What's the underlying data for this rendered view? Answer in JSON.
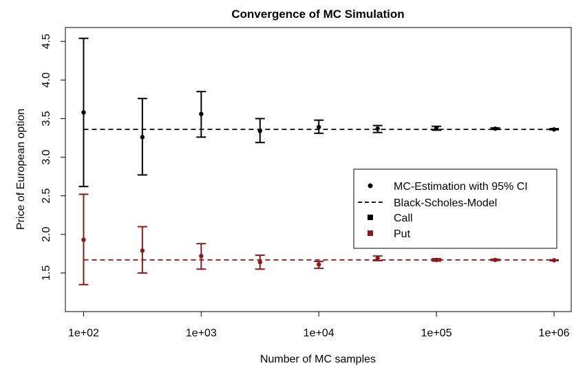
{
  "chart_data": {
    "type": "scatter",
    "title": "Convergence of MC Simulation",
    "xlabel": "Number of MC samples",
    "ylabel": "Price of European option",
    "x_scale": "log",
    "xlim": [
      70,
      1400000
    ],
    "ylim": [
      1.0,
      4.68
    ],
    "x_ticks": [
      {
        "value": 100,
        "label": "1e+02"
      },
      {
        "value": 1000,
        "label": "1e+03"
      },
      {
        "value": 10000,
        "label": "1e+04"
      },
      {
        "value": 100000,
        "label": "1e+05"
      },
      {
        "value": 1000000,
        "label": "1e+06"
      }
    ],
    "y_ticks": [
      {
        "value": 1.5,
        "label": "1.5"
      },
      {
        "value": 2.0,
        "label": "2.0"
      },
      {
        "value": 2.5,
        "label": "2.5"
      },
      {
        "value": 3.0,
        "label": "3.0"
      },
      {
        "value": 3.5,
        "label": "3.5"
      },
      {
        "value": 4.0,
        "label": "4.0"
      },
      {
        "value": 4.5,
        "label": "4.5"
      }
    ],
    "grid": false,
    "legend_position": "right",
    "legend": [
      {
        "label": "MC-Estimation with 95% CI",
        "symbol": "point",
        "color": "#000000"
      },
      {
        "label": "Black-Scholes-Model",
        "symbol": "dashed-line",
        "color": "#000000"
      },
      {
        "label": "Call",
        "symbol": "square",
        "color": "#000000"
      },
      {
        "label": "Put",
        "symbol": "square",
        "color": "#8b1a1a"
      }
    ],
    "series": [
      {
        "name": "Call",
        "color": "#000000",
        "reference": 3.36,
        "points": [
          {
            "x": 100,
            "y": 3.58,
            "lo": 2.62,
            "hi": 4.54
          },
          {
            "x": 316,
            "y": 3.26,
            "lo": 2.77,
            "hi": 3.76
          },
          {
            "x": 1000,
            "y": 3.56,
            "lo": 3.26,
            "hi": 3.85
          },
          {
            "x": 3162,
            "y": 3.34,
            "lo": 3.19,
            "hi": 3.5
          },
          {
            "x": 10000,
            "y": 3.39,
            "lo": 3.31,
            "hi": 3.48
          },
          {
            "x": 31623,
            "y": 3.37,
            "lo": 3.32,
            "hi": 3.41
          },
          {
            "x": 100000,
            "y": 3.38,
            "lo": 3.35,
            "hi": 3.4
          },
          {
            "x": 316228,
            "y": 3.37,
            "lo": 3.36,
            "hi": 3.38
          },
          {
            "x": 1000000,
            "y": 3.36,
            "lo": 3.355,
            "hi": 3.37
          }
        ]
      },
      {
        "name": "Put",
        "color": "#8b1a1a",
        "reference": 1.67,
        "points": [
          {
            "x": 100,
            "y": 1.93,
            "lo": 1.35,
            "hi": 2.52
          },
          {
            "x": 316,
            "y": 1.79,
            "lo": 1.5,
            "hi": 2.1
          },
          {
            "x": 1000,
            "y": 1.72,
            "lo": 1.55,
            "hi": 1.88
          },
          {
            "x": 3162,
            "y": 1.64,
            "lo": 1.55,
            "hi": 1.73
          },
          {
            "x": 10000,
            "y": 1.61,
            "lo": 1.56,
            "hi": 1.65
          },
          {
            "x": 31623,
            "y": 1.69,
            "lo": 1.66,
            "hi": 1.72
          },
          {
            "x": 100000,
            "y": 1.67,
            "lo": 1.655,
            "hi": 1.685
          },
          {
            "x": 316228,
            "y": 1.67,
            "lo": 1.662,
            "hi": 1.678
          },
          {
            "x": 1000000,
            "y": 1.665,
            "lo": 1.66,
            "hi": 1.67
          }
        ]
      }
    ]
  }
}
